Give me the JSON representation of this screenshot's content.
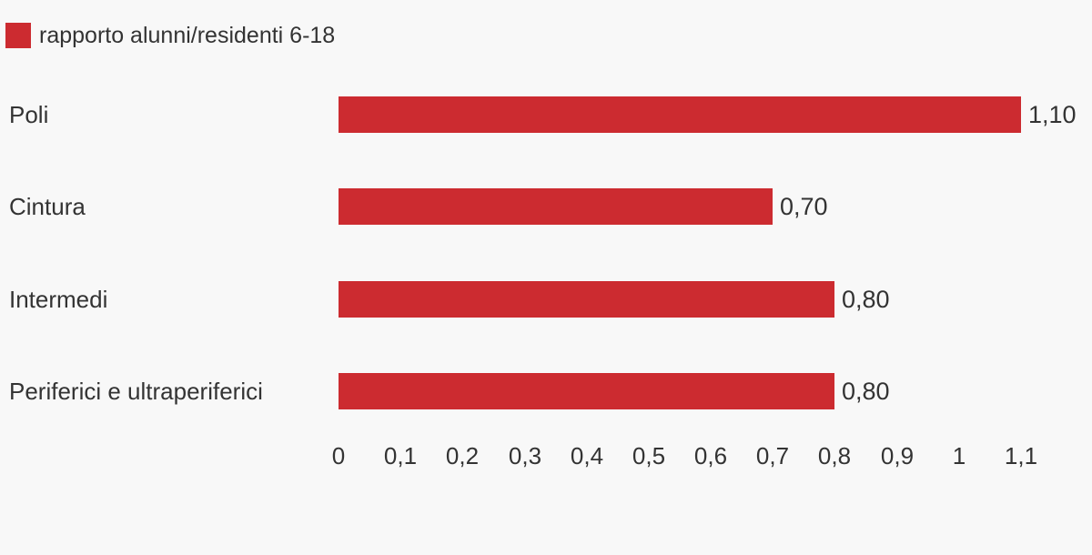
{
  "legend": {
    "label": "rapporto alunni/residenti 6-18"
  },
  "chart_data": {
    "type": "bar",
    "orientation": "horizontal",
    "title": "",
    "series_name": "rapporto alunni/residenti 6-18",
    "categories": [
      "Poli",
      "Cintura",
      "Intermedi",
      "Periferici e ultraperiferici"
    ],
    "values": [
      1.1,
      0.7,
      0.8,
      0.8
    ],
    "value_labels": [
      "1,10",
      "0,70",
      "0,80",
      "0,80"
    ],
    "xlim": [
      0,
      1.1
    ],
    "x_ticks": [
      0,
      0.1,
      0.2,
      0.3,
      0.4,
      0.5,
      0.6,
      0.7,
      0.8,
      0.9,
      1,
      1.1
    ],
    "x_tick_labels": [
      "0",
      "0,1",
      "0,2",
      "0,3",
      "0,4",
      "0,5",
      "0,6",
      "0,7",
      "0,8",
      "0,9",
      "1",
      "1,1"
    ],
    "grid": false,
    "legend_position": "top-left",
    "bar_color": "#cc2b30"
  },
  "colors": {
    "background": "#f8f8f8",
    "bar": "#cc2b30",
    "text": "#333333"
  }
}
